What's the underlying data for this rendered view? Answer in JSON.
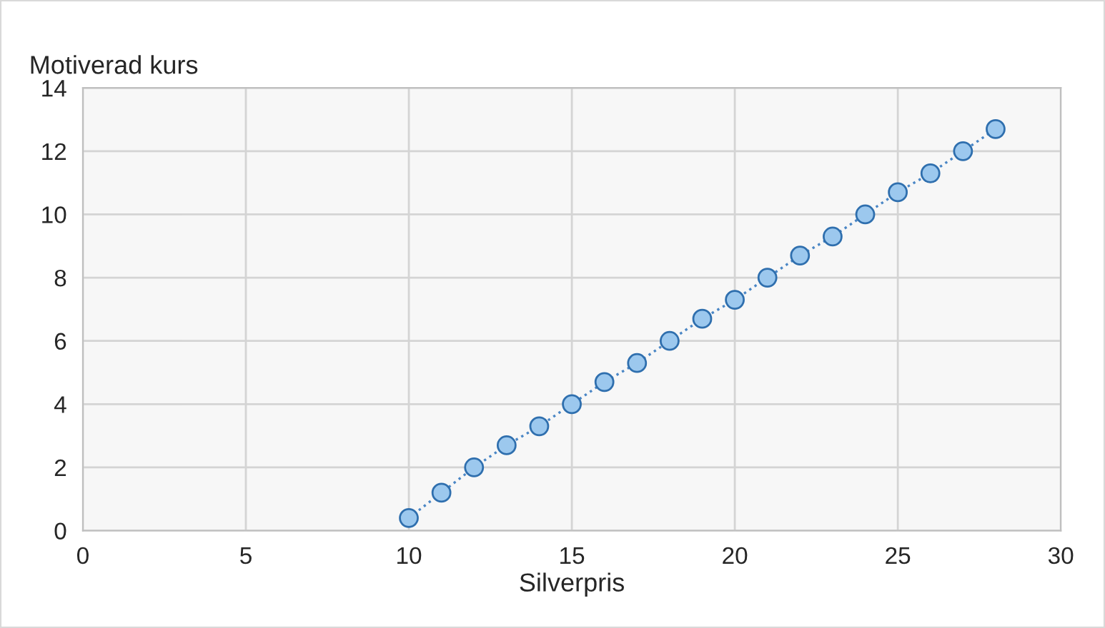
{
  "chart_data": {
    "type": "line",
    "xlabel": "Silverpris",
    "ylabel": "Motiverad kurs",
    "x": [
      10,
      11,
      12,
      13,
      14,
      15,
      16,
      17,
      18,
      19,
      20,
      21,
      22,
      23,
      24,
      25,
      26,
      27,
      28
    ],
    "series": [
      {
        "color": "#9cc8ee",
        "values": [
          0.4,
          1.2,
          2.0,
          2.7,
          3.3,
          4.0,
          4.7,
          5.3,
          6.0,
          6.7,
          7.3,
          8.0,
          8.7,
          9.3,
          10.0,
          10.7,
          11.3,
          12.0,
          12.7
        ]
      }
    ],
    "xlim": [
      0,
      30
    ],
    "xticks": [
      0,
      5,
      10,
      15,
      20,
      25,
      30
    ],
    "ylim": [
      0,
      14
    ],
    "yticks": [
      0,
      2,
      4,
      6,
      8,
      10,
      12,
      14
    ],
    "grid": true,
    "marker": "circle",
    "line_style": "dotted",
    "legend": false
  }
}
